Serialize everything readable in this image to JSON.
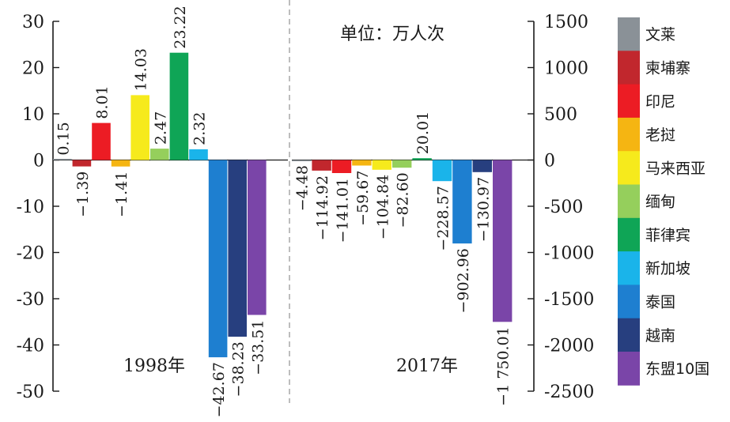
{
  "chart_data": [
    {
      "type": "bar",
      "group_label": "1998年",
      "axis": "left",
      "ylim": [
        -50,
        30
      ],
      "yticks": [
        30,
        20,
        10,
        0,
        -10,
        -20,
        -30,
        -40,
        -50
      ],
      "categories": [
        "文莱",
        "柬埔寨",
        "印尼",
        "老挝",
        "马来西亚",
        "缅甸",
        "菲律宾",
        "新加坡",
        "泰国",
        "越南",
        "东盟10国"
      ],
      "values": [
        0.15,
        -1.39,
        8.01,
        -1.41,
        14.03,
        2.47,
        23.22,
        2.32,
        -42.67,
        -38.23,
        -33.51
      ],
      "labels": [
        "0.15",
        "−1.39",
        "8.01",
        "−1.41",
        "14.03",
        "2.47",
        "23.22",
        "2.32",
        "−42.67",
        "−38.23",
        "−33.51"
      ]
    },
    {
      "type": "bar",
      "group_label": "2017年",
      "axis": "right",
      "ylim": [
        -2500,
        1500
      ],
      "yticks": [
        1500,
        1000,
        500,
        0,
        -500,
        -1000,
        -1500,
        -2000,
        -2500
      ],
      "categories": [
        "文莱",
        "柬埔寨",
        "印尼",
        "老挝",
        "马来西亚",
        "缅甸",
        "菲律宾",
        "新加坡",
        "泰国",
        "越南",
        "东盟10国"
      ],
      "values": [
        -4.48,
        -114.92,
        -141.01,
        -59.67,
        -104.84,
        -82.6,
        20.01,
        -228.57,
        -902.96,
        -130.97,
        -1750.01
      ],
      "labels": [
        "−4.48",
        "−114.92",
        "−141.01",
        "−59.67",
        "−104.84",
        "−82.60",
        "20.01",
        "−228.57",
        "−902.96",
        "−130.97",
        "−1 750.01"
      ]
    }
  ],
  "unit_label": "单位：万人次",
  "legend": {
    "placement": "right",
    "items": [
      {
        "name": "文莱",
        "color": "#8a9197"
      },
      {
        "name": "柬埔寨",
        "color": "#c1272d"
      },
      {
        "name": "印尼",
        "color": "#ec1c24"
      },
      {
        "name": "老挝",
        "color": "#f5b512"
      },
      {
        "name": "马来西亚",
        "color": "#f6ea1c"
      },
      {
        "name": "缅甸",
        "color": "#95cf5c"
      },
      {
        "name": "菲律宾",
        "color": "#0fa556"
      },
      {
        "name": "新加坡",
        "color": "#1ab4ea"
      },
      {
        "name": "泰国",
        "color": "#1e7fd0"
      },
      {
        "name": "越南",
        "color": "#273f7f"
      },
      {
        "name": "东盟10国",
        "color": "#7a45a8"
      }
    ]
  },
  "divider": "dashed",
  "grid": false
}
